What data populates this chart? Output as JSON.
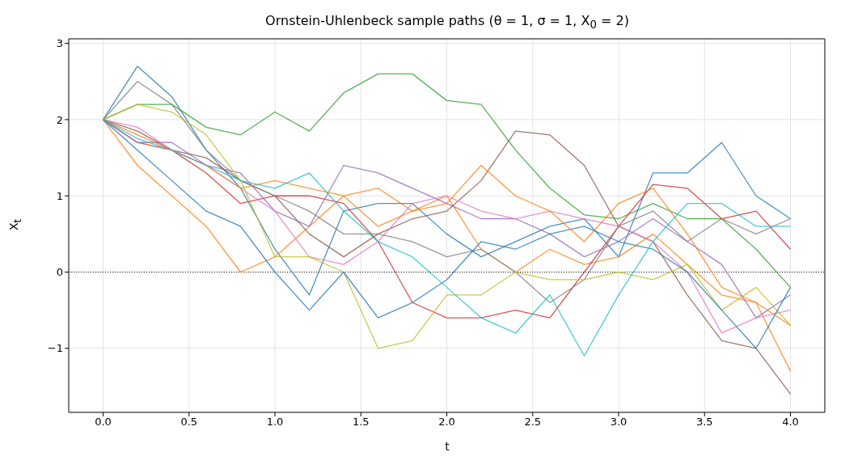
{
  "chart_data": {
    "type": "line",
    "title": "Ornstein-Uhlenbeck sample paths (θ = 1,  σ = 1,  X$_{0}$ = 2)",
    "xlabel": "t",
    "ylabel": "X$_{t}$",
    "x": [
      0,
      0.2,
      0.4,
      0.6,
      0.8,
      1.0,
      1.2,
      1.4,
      1.6,
      1.8,
      2.0,
      2.2,
      2.4,
      2.6,
      2.8,
      3.0,
      3.2,
      3.4,
      3.6,
      3.8,
      4.0
    ],
    "series": [
      {
        "color": "#1f77b4",
        "values": [
          2,
          2.7,
          2.3,
          1.6,
          1.1,
          0.3,
          -0.3,
          0.8,
          0.9,
          0.9,
          0.5,
          0.2,
          0.4,
          0.6,
          0.7,
          0.2,
          1.3,
          1.3,
          1.7,
          1.0,
          0.7
        ]
      },
      {
        "color": "#ff7f0e",
        "values": [
          2,
          1.4,
          1.0,
          0.6,
          0.0,
          0.2,
          0.6,
          1.0,
          1.1,
          0.8,
          1.0,
          0.3,
          0.0,
          0.3,
          0.1,
          0.2,
          0.5,
          0.1,
          -0.3,
          -0.4,
          -1.3
        ]
      },
      {
        "color": "#2ca02c",
        "values": [
          2,
          2.2,
          2.2,
          1.9,
          1.8,
          2.1,
          1.85,
          2.35,
          2.6,
          2.6,
          2.25,
          2.2,
          1.6,
          1.1,
          0.75,
          0.7,
          0.9,
          0.7,
          0.7,
          0.3,
          -0.2
        ]
      },
      {
        "color": "#d62728",
        "values": [
          2,
          1.7,
          1.6,
          1.3,
          0.9,
          1.0,
          1.0,
          0.9,
          0.4,
          -0.4,
          -0.6,
          -0.6,
          -0.5,
          -0.6,
          0.0,
          0.6,
          1.15,
          1.1,
          0.7,
          0.8,
          0.3
        ]
      },
      {
        "color": "#9467bd",
        "values": [
          2,
          1.7,
          1.7,
          1.4,
          1.3,
          0.8,
          0.6,
          1.4,
          1.3,
          1.1,
          0.9,
          0.7,
          0.7,
          0.5,
          0.2,
          0.4,
          0.7,
          0.4,
          0.1,
          -0.6,
          -0.3
        ]
      },
      {
        "color": "#8c564b",
        "values": [
          2,
          1.85,
          1.6,
          1.5,
          1.2,
          1.0,
          0.5,
          0.2,
          0.5,
          0.7,
          0.8,
          1.2,
          1.85,
          1.8,
          1.4,
          0.6,
          0.4,
          -0.3,
          -0.9,
          -1.0,
          -1.6
        ]
      },
      {
        "color": "#e377c2",
        "values": [
          2,
          1.9,
          1.6,
          1.4,
          1.1,
          0.8,
          0.2,
          0.1,
          0.4,
          0.9,
          1.0,
          0.8,
          0.7,
          0.8,
          0.7,
          0.6,
          0.4,
          0.0,
          -0.8,
          -0.6,
          -0.5
        ]
      },
      {
        "color": "#7f7f7f",
        "values": [
          2,
          2.5,
          2.2,
          1.6,
          1.2,
          1.0,
          0.8,
          0.5,
          0.5,
          0.4,
          0.2,
          0.3,
          0.0,
          -0.4,
          -0.1,
          0.6,
          0.8,
          0.4,
          0.7,
          0.5,
          0.7
        ]
      },
      {
        "color": "#bcbd22",
        "values": [
          2,
          2.2,
          2.1,
          1.8,
          1.2,
          0.2,
          0.2,
          0.0,
          -1.0,
          -0.9,
          -0.3,
          -0.3,
          0.0,
          -0.1,
          -0.1,
          0.0,
          -0.1,
          0.1,
          -0.5,
          -0.2,
          -0.7
        ]
      },
      {
        "color": "#1f77b4",
        "values": [
          2,
          1.6,
          1.2,
          0.8,
          0.6,
          0.0,
          -0.5,
          0.0,
          -0.6,
          -0.4,
          -0.1,
          0.4,
          0.3,
          0.5,
          0.6,
          0.4,
          0.3,
          0.0,
          -0.5,
          -1.0,
          -0.2
        ]
      },
      {
        "color": "#ff7f0e",
        "values": [
          2,
          1.8,
          1.6,
          1.4,
          1.1,
          1.2,
          1.1,
          1.0,
          0.6,
          0.8,
          0.9,
          1.4,
          1.0,
          0.8,
          0.4,
          0.9,
          1.1,
          0.5,
          -0.2,
          -0.4,
          -0.7
        ]
      },
      {
        "color": "#17becf",
        "values": [
          2,
          1.75,
          1.6,
          1.4,
          1.2,
          1.1,
          1.3,
          0.8,
          0.4,
          0.2,
          -0.2,
          -0.6,
          -0.8,
          -0.3,
          -1.1,
          -0.3,
          0.4,
          0.9,
          0.9,
          0.6,
          0.6
        ]
      }
    ],
    "xlim": [
      -0.2,
      4.2
    ],
    "ylim": [
      -1.84,
      3.06
    ],
    "xticks": [
      {
        "value": 0,
        "label": "0.0"
      },
      {
        "value": 0.5,
        "label": "0.5"
      },
      {
        "value": 1,
        "label": "1.0"
      },
      {
        "value": 1.5,
        "label": "1.5"
      },
      {
        "value": 2,
        "label": "2.0"
      },
      {
        "value": 2.5,
        "label": "2.5"
      },
      {
        "value": 3,
        "label": "3.0"
      },
      {
        "value": 3.5,
        "label": "3.5"
      },
      {
        "value": 4,
        "label": "4.0"
      }
    ],
    "yticks": [
      {
        "value": -1,
        "label": "−1"
      },
      0,
      1,
      2,
      3
    ],
    "ref_lines": [
      {
        "axis": "y",
        "value": 0,
        "color": "#000000",
        "line_style": "dotted"
      }
    ],
    "grid": true,
    "marker": "none",
    "line_style": "solid"
  }
}
